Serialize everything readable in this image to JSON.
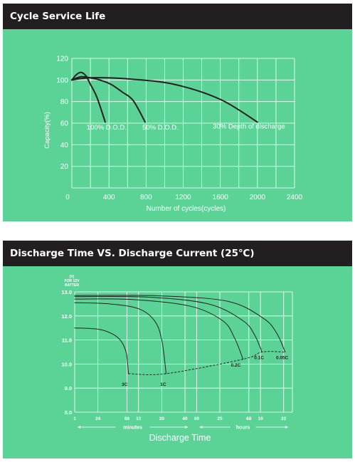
{
  "colors": {
    "header_bg": "#231f20",
    "header_text": "#ffffff",
    "panel_bg": "#5cd396",
    "grid": "#ffffff",
    "curve": "#231f20"
  },
  "panel1": {
    "title": "Cycle Service Life",
    "chart_data": {
      "type": "line",
      "xlabel": "Number of cycles(cycles)",
      "ylabel": "Capacity(%)",
      "xlim": [
        0,
        2400
      ],
      "ylim": [
        0,
        120
      ],
      "x_ticks": [
        0,
        400,
        800,
        1200,
        1600,
        2000,
        2400
      ],
      "x_tick_labels": [
        "0",
        "400",
        "800",
        "1200",
        "1600",
        "2000",
        "2400"
      ],
      "y_ticks": [
        0,
        20,
        40,
        60,
        80,
        100,
        120
      ],
      "y_tick_labels": [
        "",
        "20",
        "40",
        "60",
        "80",
        "100",
        "120"
      ],
      "grid": true,
      "series": [
        {
          "name": "100% D.O.D.",
          "x": [
            0,
            50,
            100,
            150,
            200,
            270,
            360
          ],
          "y": [
            100,
            105,
            107,
            104,
            96,
            84,
            61
          ]
        },
        {
          "name": "50% D.O.D.",
          "x": [
            0,
            100,
            200,
            300,
            420,
            540,
            660,
            790
          ],
          "y": [
            100,
            103,
            102,
            100,
            96,
            89,
            81,
            61
          ]
        },
        {
          "name": "30% Depth of discharge",
          "x": [
            0,
            200,
            600,
            1100,
            1600,
            2000
          ],
          "y": [
            100,
            102,
            101,
            96,
            82,
            61
          ]
        }
      ],
      "annotations": [
        {
          "text": "100% D.O.D.",
          "x": 160,
          "y": 54
        },
        {
          "text": "50% D.O.D.",
          "x": 760,
          "y": 54
        },
        {
          "text": "30% Depth of discharge",
          "x": 1520,
          "y": 55
        }
      ]
    }
  },
  "panel2": {
    "title": "Discharge Time VS. Discharge Current (25℃)",
    "chart_data": {
      "type": "line",
      "xlabel": "Discharge Time",
      "ylabel_lines": [
        "(V)",
        "FOR 12V",
        "BATTER"
      ],
      "ylim": [
        8.0,
        13.0
      ],
      "y_ticks": [
        8.0,
        9.0,
        10.0,
        11.0,
        12.0,
        13.0
      ],
      "y_tick_labels": [
        "8.0",
        "9.0",
        "10.0",
        "11.0",
        "12.0",
        "13.0"
      ],
      "x_tick_labels": [
        "1",
        "24",
        "68",
        "10",
        "20",
        "40",
        "60",
        "25",
        "68",
        "10",
        "20"
      ],
      "x_tick_positions": [
        0,
        0.8,
        1.8,
        2.2,
        3.0,
        3.8,
        4.2,
        5.0,
        6.0,
        6.4,
        7.2
      ],
      "xlim": [
        0,
        7.5
      ],
      "unit_minutes": "minutes",
      "unit_hours": "hours",
      "grid": true,
      "series": [
        {
          "name": "3C",
          "x": [
            0,
            0.8,
            1.3,
            1.6,
            1.78,
            1.85
          ],
          "y": [
            11.5,
            11.45,
            11.25,
            10.95,
            10.45,
            9.6
          ]
        },
        {
          "name": "1C",
          "x": [
            0,
            1.2,
            2.2,
            2.75,
            3.0,
            3.15
          ],
          "y": [
            12.55,
            12.5,
            12.3,
            11.8,
            11.0,
            9.6
          ]
        },
        {
          "name": "0.2C",
          "x": [
            0,
            2.0,
            4.0,
            5.1,
            5.5,
            5.8
          ],
          "y": [
            12.7,
            12.68,
            12.4,
            11.8,
            11.1,
            10.2
          ]
        },
        {
          "name": "0.1C",
          "x": [
            0,
            2.5,
            4.6,
            5.8,
            6.2,
            6.45
          ],
          "y": [
            12.8,
            12.78,
            12.5,
            11.8,
            11.2,
            10.5
          ]
        },
        {
          "name": "0.05C",
          "x": [
            0,
            3.0,
            5.3,
            6.5,
            6.95,
            7.25
          ],
          "y": [
            12.85,
            12.83,
            12.6,
            11.9,
            11.3,
            10.5
          ]
        }
      ],
      "cutoff_line": {
        "x": [
          1.85,
          3.15,
          5.8,
          6.45,
          7.25
        ],
        "y": [
          9.6,
          9.6,
          10.2,
          10.5,
          10.5
        ]
      },
      "annotations": [
        {
          "text": "3C",
          "x": 1.72,
          "y": 9.1
        },
        {
          "text": "1C",
          "x": 3.05,
          "y": 9.1
        },
        {
          "text": "0.2C",
          "x": 5.55,
          "y": 9.9
        },
        {
          "text": "0.1C",
          "x": 6.35,
          "y": 10.2
        },
        {
          "text": "0.05C",
          "x": 7.15,
          "y": 10.2
        }
      ]
    }
  }
}
